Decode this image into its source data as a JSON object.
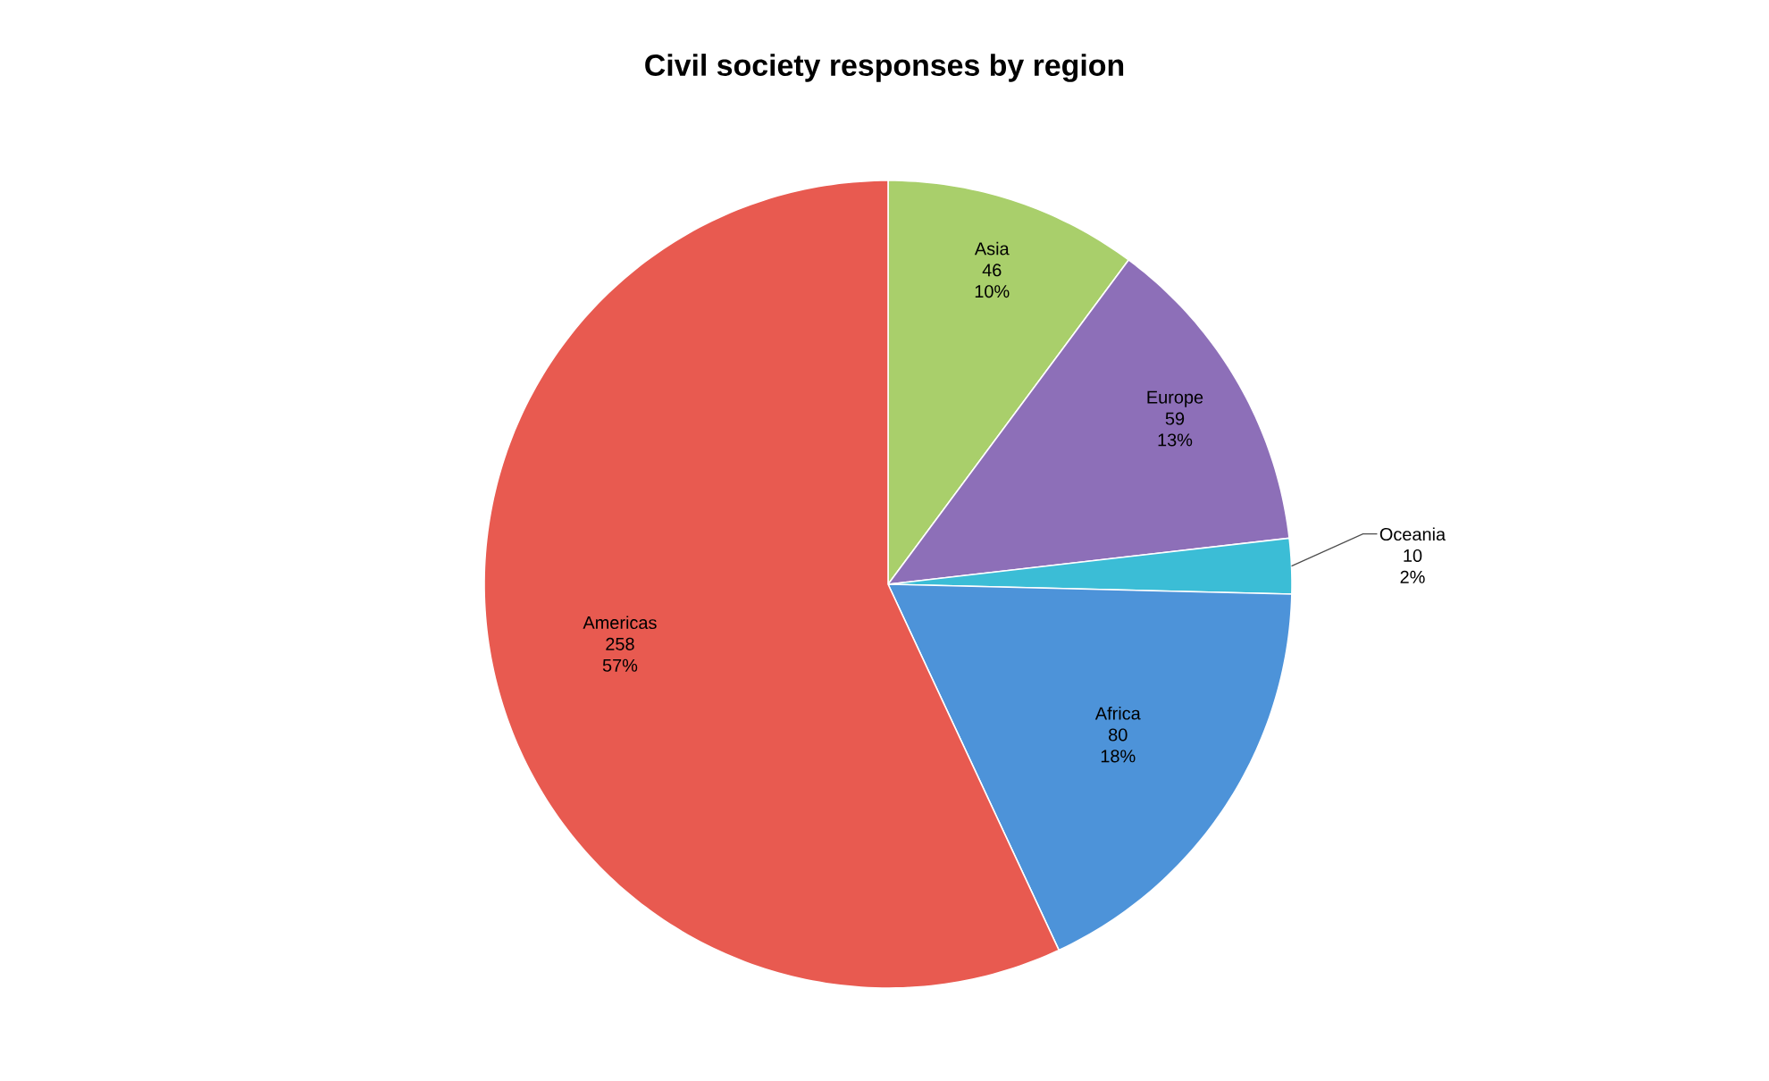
{
  "chart_data": {
    "type": "pie",
    "title": "Civil society responses by region",
    "categories": [
      "Asia",
      "Europe",
      "Oceania",
      "Africa",
      "Americas"
    ],
    "values": [
      46,
      59,
      10,
      80,
      258
    ],
    "annotations": [
      {
        "text": "10%",
        "x": "Asia"
      },
      {
        "text": "13%",
        "x": "Europe"
      },
      {
        "text": "2%",
        "x": "Oceania"
      },
      {
        "text": "18%",
        "x": "Africa"
      },
      {
        "text": "57%",
        "x": "Americas"
      }
    ],
    "data_labels": true,
    "colors": [
      "#a9cf6b",
      "#8d6fb8",
      "#3bbdd6",
      "#4d93d9",
      "#e85a50"
    ]
  }
}
